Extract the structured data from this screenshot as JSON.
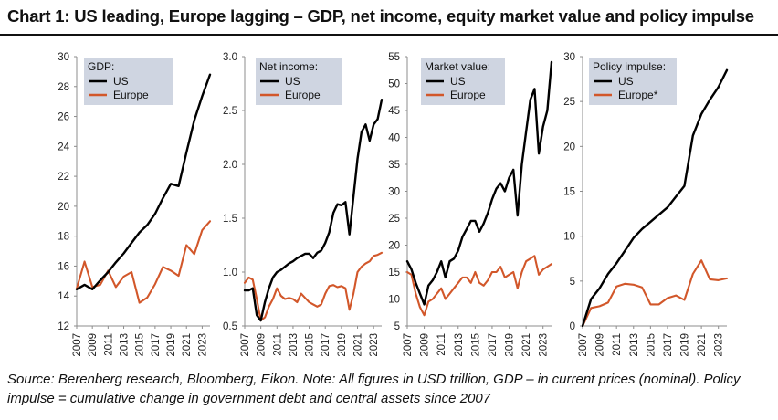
{
  "title": "Chart 1: US leading, Europe lagging – GDP, net income, equity market value and policy impulse",
  "source_note": "Source: Berenberg research, Bloomberg, Eikon. Note: All figures in USD trillion, GDP – in current prices (nominal). Policy impulse = cumulative change in government debt and central assets since 2007",
  "colors": {
    "us": "#000000",
    "europe": "#d2572a",
    "legend_bg": "#cfd5e1",
    "axis": "#8c8c8c"
  },
  "chart_data": [
    {
      "type": "line",
      "legend_title": "GDP:",
      "ylim": [
        12,
        30
      ],
      "y_ticks": [
        "12",
        "14",
        "16",
        "18",
        "20",
        "22",
        "24",
        "26",
        "28",
        "30"
      ],
      "x_ticks": [
        "2007",
        "2009",
        "2011",
        "2013",
        "2015",
        "2017",
        "2019",
        "2021",
        "2023"
      ],
      "series": [
        {
          "name": "US",
          "x": [
            2007,
            2008,
            2009,
            2010,
            2011,
            2012,
            2013,
            2014,
            2015,
            2016,
            2017,
            2018,
            2019,
            2020,
            2021,
            2022,
            2023,
            2024
          ],
          "values": [
            14.45,
            14.75,
            14.45,
            15.05,
            15.6,
            16.25,
            16.85,
            17.55,
            18.25,
            18.75,
            19.5,
            20.55,
            21.5,
            21.35,
            23.6,
            25.75,
            27.35,
            28.8
          ]
        },
        {
          "name": "Europe",
          "x": [
            2007,
            2008,
            2009,
            2010,
            2011,
            2012,
            2013,
            2014,
            2015,
            2016,
            2017,
            2018,
            2019,
            2020,
            2021,
            2022,
            2023,
            2024
          ],
          "values": [
            14.5,
            16.3,
            14.6,
            14.75,
            15.7,
            14.6,
            15.3,
            15.6,
            13.55,
            13.9,
            14.8,
            15.95,
            15.7,
            15.35,
            17.4,
            16.8,
            18.4,
            19.0
          ]
        }
      ]
    },
    {
      "type": "line",
      "legend_title": "Net income:",
      "ylim": [
        0.5,
        3.0
      ],
      "y_ticks": [
        "0.5",
        "1.0",
        "1.5",
        "2.0",
        "2.5",
        "3.0"
      ],
      "x_ticks": [
        "2007",
        "2009",
        "2011",
        "2013",
        "2015",
        "2017",
        "2019",
        "2021",
        "2023"
      ],
      "series": [
        {
          "name": "US",
          "x": [
            2007.0,
            2007.5,
            2008.0,
            2008.5,
            2009.0,
            2009.5,
            2010.0,
            2010.5,
            2011.0,
            2011.5,
            2012.0,
            2012.5,
            2013.0,
            2013.5,
            2014.0,
            2014.5,
            2015.0,
            2015.5,
            2016.0,
            2016.5,
            2017.0,
            2017.5,
            2018.0,
            2018.5,
            2019.0,
            2019.5,
            2020.0,
            2020.5,
            2021.0,
            2021.5,
            2022.0,
            2022.5,
            2023.0,
            2023.5,
            2024.0
          ],
          "values": [
            0.83,
            0.83,
            0.85,
            0.6,
            0.55,
            0.72,
            0.85,
            0.95,
            1.0,
            1.02,
            1.05,
            1.08,
            1.1,
            1.13,
            1.15,
            1.17,
            1.17,
            1.13,
            1.18,
            1.2,
            1.27,
            1.37,
            1.55,
            1.63,
            1.62,
            1.65,
            1.35,
            1.7,
            2.05,
            2.3,
            2.37,
            2.22,
            2.37,
            2.42,
            2.6
          ]
        },
        {
          "name": "Europe",
          "x": [
            2007.0,
            2007.5,
            2008.0,
            2008.5,
            2009.0,
            2009.5,
            2010.0,
            2010.5,
            2011.0,
            2011.5,
            2012.0,
            2012.5,
            2013.0,
            2013.5,
            2014.0,
            2014.5,
            2015.0,
            2015.5,
            2016.0,
            2016.5,
            2017.0,
            2017.5,
            2018.0,
            2018.5,
            2019.0,
            2019.5,
            2020.0,
            2020.5,
            2021.0,
            2021.5,
            2022.0,
            2022.5,
            2023.0,
            2023.5,
            2024.0
          ],
          "values": [
            0.9,
            0.95,
            0.93,
            0.75,
            0.55,
            0.58,
            0.68,
            0.75,
            0.85,
            0.78,
            0.75,
            0.76,
            0.75,
            0.72,
            0.8,
            0.76,
            0.72,
            0.7,
            0.68,
            0.7,
            0.8,
            0.87,
            0.88,
            0.86,
            0.87,
            0.85,
            0.65,
            0.8,
            1.0,
            1.05,
            1.08,
            1.1,
            1.15,
            1.16,
            1.18
          ]
        }
      ]
    },
    {
      "type": "line",
      "legend_title": "Market value:",
      "ylim": [
        5,
        55
      ],
      "y_ticks": [
        "5",
        "10",
        "15",
        "20",
        "25",
        "30",
        "35",
        "40",
        "45",
        "50",
        "55"
      ],
      "x_ticks": [
        "2007",
        "2009",
        "2011",
        "2013",
        "2015",
        "2017",
        "2019",
        "2021",
        "2023"
      ],
      "series": [
        {
          "name": "US",
          "x": [
            2007.0,
            2007.5,
            2008.0,
            2008.5,
            2009.0,
            2009.5,
            2010.0,
            2010.5,
            2011.0,
            2011.5,
            2012.0,
            2012.5,
            2013.0,
            2013.5,
            2014.0,
            2014.5,
            2015.0,
            2015.5,
            2016.0,
            2016.5,
            2017.0,
            2017.5,
            2018.0,
            2018.5,
            2019.0,
            2019.5,
            2020.0,
            2020.5,
            2021.0,
            2021.5,
            2022.0,
            2022.5,
            2023.0,
            2023.5,
            2024.0
          ],
          "values": [
            17,
            15.5,
            13,
            11,
            9,
            12.5,
            13.5,
            15,
            17,
            14,
            17,
            17.5,
            19,
            21.5,
            23,
            24.5,
            24.5,
            22.5,
            24,
            26,
            28.5,
            30.5,
            31.5,
            30,
            32.5,
            34,
            25.5,
            35,
            41,
            47,
            49,
            37,
            42,
            45,
            54
          ]
        },
        {
          "name": "Europe",
          "x": [
            2007.0,
            2007.5,
            2008.0,
            2008.5,
            2009.0,
            2009.5,
            2010.0,
            2010.5,
            2011.0,
            2011.5,
            2012.0,
            2012.5,
            2013.0,
            2013.5,
            2014.0,
            2014.5,
            2015.0,
            2015.5,
            2016.0,
            2016.5,
            2017.0,
            2017.5,
            2018.0,
            2018.5,
            2019.0,
            2019.5,
            2020.0,
            2020.5,
            2021.0,
            2021.5,
            2022.0,
            2022.5,
            2023.0,
            2023.5,
            2024.0
          ],
          "values": [
            15,
            14.5,
            11,
            8.5,
            7,
            9.5,
            10,
            11,
            12,
            10,
            11,
            12,
            13,
            14,
            14,
            13,
            15,
            13,
            12.5,
            13.5,
            15,
            15,
            16,
            14,
            14.5,
            15,
            12,
            15,
            17,
            17.5,
            18,
            14.5,
            15.5,
            16,
            16.5
          ]
        }
      ]
    },
    {
      "type": "line",
      "legend_title": "Policy impulse:",
      "ylim": [
        0,
        30
      ],
      "y_ticks": [
        "0",
        "5",
        "10",
        "15",
        "20",
        "25",
        "30"
      ],
      "x_ticks": [
        "2007",
        "2009",
        "2011",
        "2013",
        "2015",
        "2017",
        "2019",
        "2021",
        "2023"
      ],
      "series": [
        {
          "name": "US",
          "x": [
            2007,
            2008,
            2009,
            2010,
            2011,
            2012,
            2013,
            2014,
            2015,
            2016,
            2017,
            2018,
            2019,
            2020,
            2021,
            2022,
            2023,
            2024
          ],
          "values": [
            0,
            3.0,
            4.2,
            5.8,
            7.0,
            8.4,
            9.8,
            10.8,
            11.6,
            12.4,
            13.2,
            14.4,
            15.6,
            21.2,
            23.6,
            25.2,
            26.6,
            28.5
          ]
        },
        {
          "name": "Europe*",
          "x": [
            2007,
            2008,
            2009,
            2010,
            2011,
            2012,
            2013,
            2014,
            2015,
            2016,
            2017,
            2018,
            2019,
            2020,
            2021,
            2022,
            2023,
            2024
          ],
          "values": [
            0,
            2.0,
            2.2,
            2.6,
            4.4,
            4.7,
            4.6,
            4.3,
            2.4,
            2.4,
            3.1,
            3.4,
            2.9,
            5.8,
            7.3,
            5.2,
            5.1,
            5.3
          ]
        }
      ]
    }
  ]
}
